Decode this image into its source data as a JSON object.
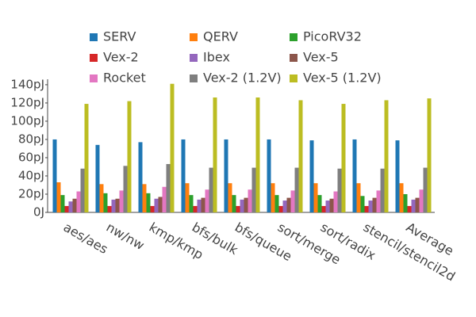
{
  "chart_data": {
    "type": "bar",
    "categories": [
      "aes/aes",
      "nw/nw",
      "kmp/kmp",
      "bfs/bulk",
      "bfs/queue",
      "sort/merge",
      "sort/radix",
      "stencil/stencil2d",
      "Average"
    ],
    "series": [
      {
        "name": "SERV",
        "color": "#1f77b4",
        "values": [
          80,
          74,
          77,
          80,
          80,
          80,
          79,
          80,
          79
        ]
      },
      {
        "name": "QERV",
        "color": "#ff7f0e",
        "values": [
          33,
          31,
          31,
          32,
          32,
          32,
          32,
          32,
          32
        ]
      },
      {
        "name": "PicoRV32",
        "color": "#2ca02c",
        "values": [
          19,
          21,
          21,
          19,
          19,
          19,
          19,
          18,
          20
        ]
      },
      {
        "name": "Vex-2",
        "color": "#d62728",
        "values": [
          7,
          7,
          7,
          7,
          7,
          7,
          7,
          7,
          7
        ]
      },
      {
        "name": "Ibex",
        "color": "#9467bd",
        "values": [
          12,
          14,
          15,
          14,
          14,
          13,
          13,
          13,
          14
        ]
      },
      {
        "name": "Vex-5",
        "color": "#8c564b",
        "values": [
          15,
          15,
          17,
          16,
          16,
          16,
          15,
          16,
          16
        ]
      },
      {
        "name": "Rocket",
        "color": "#e377c2",
        "values": [
          23,
          24,
          28,
          25,
          25,
          24,
          23,
          24,
          25
        ]
      },
      {
        "name": "Vex-2 (1.2V)",
        "color": "#7f7f7f",
        "values": [
          48,
          51,
          53,
          49,
          49,
          49,
          48,
          48,
          49
        ]
      },
      {
        "name": "Vex-5 (1.2V)",
        "color": "#bcbd22",
        "values": [
          119,
          122,
          141,
          126,
          126,
          123,
          119,
          123,
          125
        ]
      }
    ],
    "ylim": [
      0,
      146
    ],
    "yticks": [
      {
        "value": 0,
        "label": "0J"
      },
      {
        "value": 20,
        "label": "20pJ"
      },
      {
        "value": 40,
        "label": "40pJ"
      },
      {
        "value": 60,
        "label": "60pJ"
      },
      {
        "value": 80,
        "label": "80pJ"
      },
      {
        "value": 100,
        "label": "100pJ"
      },
      {
        "value": 120,
        "label": "120pJ"
      },
      {
        "value": 140,
        "label": "140pJ"
      }
    ],
    "grid": false
  }
}
